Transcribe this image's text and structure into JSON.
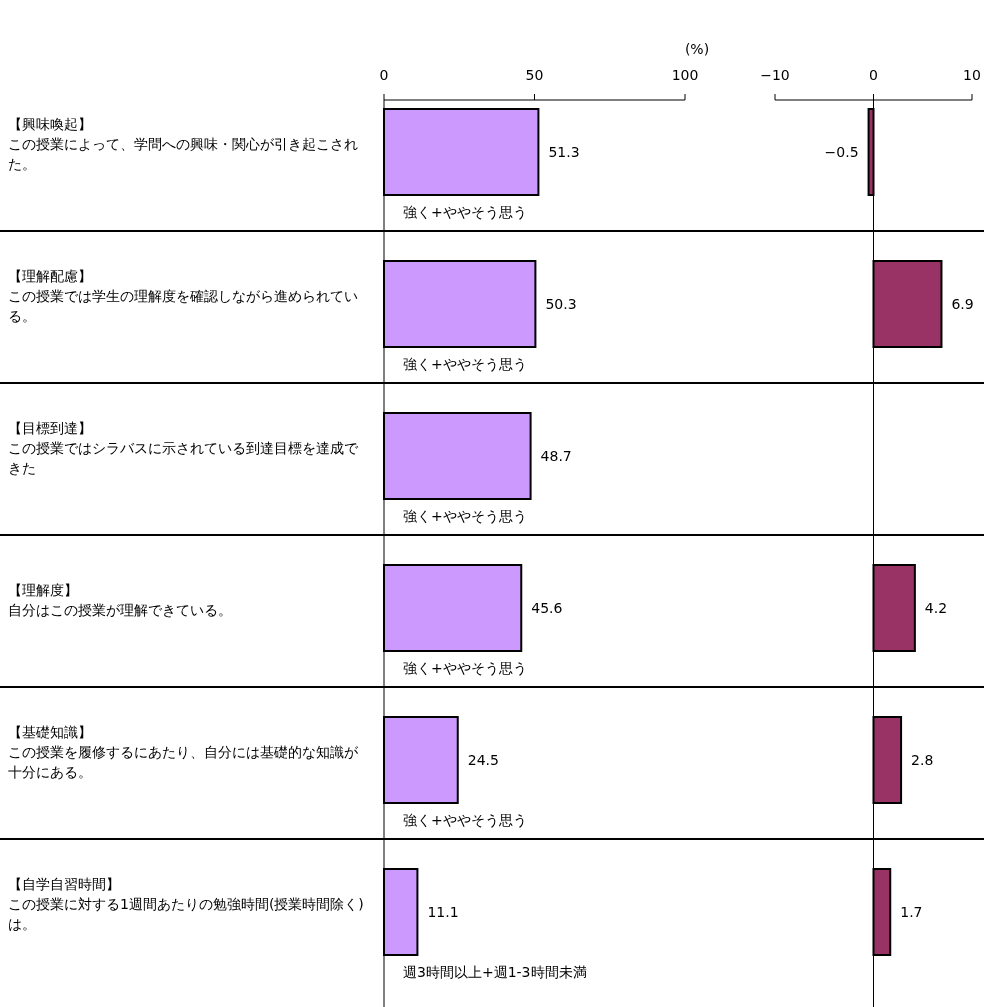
{
  "chart_data": [
    {
      "type": "bar",
      "orientation": "horizontal",
      "xlabel": "(%)",
      "xlim": [
        0,
        100
      ],
      "xticks": [
        0,
        50,
        100
      ],
      "data_labels": true,
      "color": "#cc99ff",
      "categories": [
        "【興味喚起】この授業によって、学問への興味・関心が引き起こされた。",
        "【理解配慮】この授業では学生の理解度を確認しながら進められている。",
        "【目標到達】この授業ではシラバスに示されている到達目標を達成できた",
        "【理解度】自分はこの授業が理解できている。",
        "【基礎知識】この授業を履修するにあたり、自分には基礎的な知識が十分にある。",
        "【自学自習時間】この授業に対する1週間あたりの勉強時間(授業時間除く)は。"
      ],
      "values": [
        51.3,
        50.3,
        48.7,
        45.6,
        24.5,
        11.1
      ],
      "annotations": [
        "強く+ややそう思う",
        "強く+ややそう思う",
        "強く+ややそう思う",
        "強く+ややそう思う",
        "強く+ややそう思う",
        "週3時間以上+週1-3時間未満"
      ]
    },
    {
      "type": "bar",
      "orientation": "horizontal",
      "xlim": [
        -10,
        10
      ],
      "xticks": [
        {
          "value": -10,
          "label": "−10"
        },
        0,
        10
      ],
      "tick_labels": "x",
      "color": "#993366",
      "categories": [
        null,
        null,
        null,
        null,
        null,
        null
      ],
      "values": [
        -0.5,
        6.9,
        null,
        4.2,
        2.8,
        1.7
      ],
      "value_labels": [
        "−0.5",
        "6.9",
        null,
        "4.2",
        "2.8",
        "1.7"
      ],
      "ref_lines": [
        {
          "axis": "x",
          "value": 0
        }
      ]
    }
  ]
}
